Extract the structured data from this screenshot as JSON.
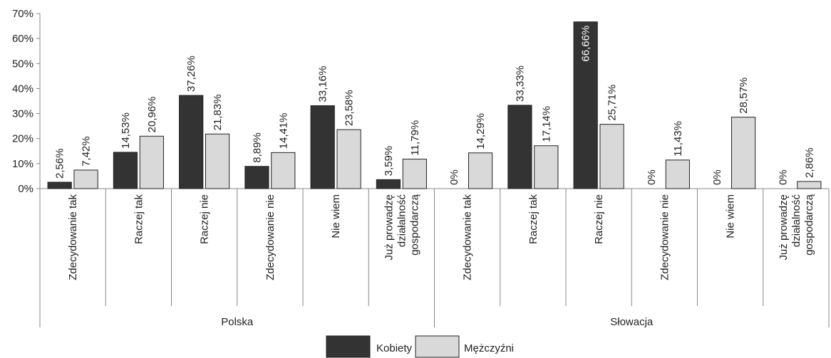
{
  "chart_data": {
    "type": "bar",
    "ylim": [
      0,
      70
    ],
    "y_ticks": [
      "0%",
      "10%",
      "20%",
      "30%",
      "40%",
      "50%",
      "60%",
      "70%"
    ],
    "groups": [
      {
        "name": "Polska",
        "categories": [
          [
            "Zdecydowanie tak"
          ],
          [
            "Raczej tak"
          ],
          [
            "Raczej nie"
          ],
          [
            "Zdecydowanie nie"
          ],
          [
            "Nie wiem"
          ],
          [
            "Już prowadzę",
            "działalność",
            "gospodarczą"
          ]
        ],
        "series": [
          {
            "name": "Kobiety",
            "values": [
              2.56,
              14.53,
              37.26,
              8.89,
              33.16,
              3.59
            ],
            "labels": [
              "2,56%",
              "14,53%",
              "37,26%",
              "8,89%",
              "33,16%",
              "3,59%"
            ]
          },
          {
            "name": "Mężczyźni",
            "values": [
              7.42,
              20.96,
              21.83,
              14.41,
              23.58,
              11.79
            ],
            "labels": [
              "7,42%",
              "20,96%",
              "21,83%",
              "14,41%",
              "23,58%",
              "11,79%"
            ]
          }
        ]
      },
      {
        "name": "Słowacja",
        "categories": [
          [
            "Zdecydowanie tak"
          ],
          [
            "Raczej tak"
          ],
          [
            "Raczej nie"
          ],
          [
            "Zdecydowanie nie"
          ],
          [
            "Nie wiem"
          ],
          [
            "Już prowadzę",
            "działalność",
            "gospodarczą"
          ]
        ],
        "series": [
          {
            "name": "Kobiety",
            "values": [
              0,
              33.33,
              66.66,
              0,
              0,
              0
            ],
            "labels": [
              "0%",
              "33,33%",
              "66,66%",
              "0%",
              "0%",
              "0%"
            ]
          },
          {
            "name": "Mężczyźni",
            "values": [
              14.29,
              17.14,
              25.71,
              11.43,
              28.57,
              2.86
            ],
            "labels": [
              "14,29%",
              "17,14%",
              "25,71%",
              "11,43%",
              "28,57%",
              "2,86%"
            ]
          }
        ]
      }
    ],
    "legend": {
      "position": "bottom",
      "items": [
        {
          "name": "Kobiety",
          "color": "#333333"
        },
        {
          "name": "Mężczyźni",
          "color": "#d9d9d9"
        }
      ]
    },
    "colors": {
      "Kobiety": "#333333",
      "Mężczyźni": "#d9d9d9"
    }
  }
}
